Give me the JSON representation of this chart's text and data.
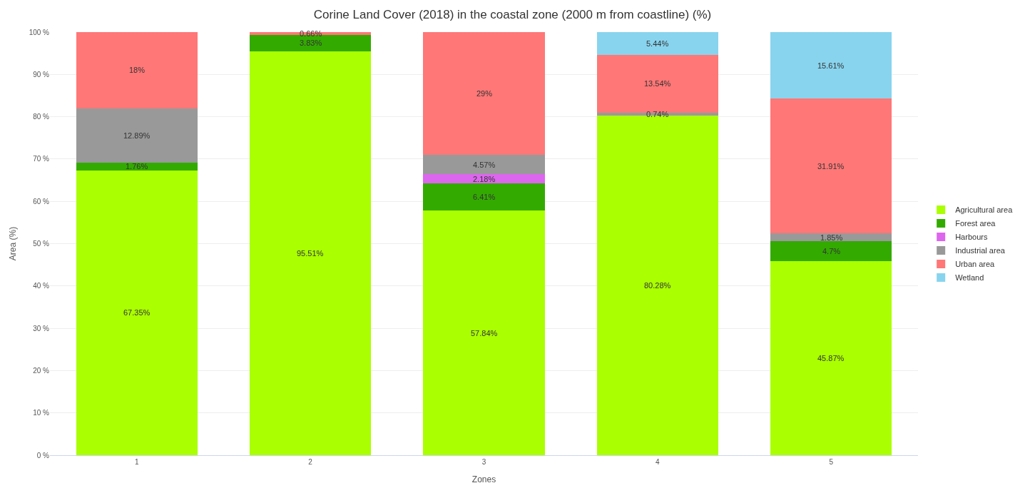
{
  "chart_data": {
    "type": "bar",
    "title": "Corine Land Cover (2018) in the coastal zone (2000 m from coastline) (%)",
    "xlabel": "Zones",
    "ylabel": "Area (%)",
    "categories": [
      "1",
      "2",
      "3",
      "4",
      "5"
    ],
    "stacked": true,
    "series": [
      {
        "name": "Agricultural area",
        "color": "#aaff00",
        "values": [
          67.35,
          95.51,
          57.84,
          80.28,
          45.87
        ],
        "value_labels": [
          "67.35%",
          "95.51%",
          "57.84%",
          "80.28%",
          "45.87%"
        ]
      },
      {
        "name": "Forest area",
        "color": "#33aa00",
        "values": [
          1.76,
          3.83,
          6.41,
          null,
          4.7
        ],
        "value_labels": [
          "1.76%",
          "3.83%",
          "6.41%",
          null,
          "4.7%"
        ]
      },
      {
        "name": "Harbours",
        "color": "#dd66ee",
        "values": [
          null,
          null,
          2.18,
          null,
          null
        ],
        "value_labels": [
          null,
          null,
          "2.18%",
          null,
          null
        ]
      },
      {
        "name": "Industrial area",
        "color": "#999999",
        "values": [
          12.89,
          null,
          4.57,
          0.74,
          1.85
        ],
        "value_labels": [
          "12.89%",
          null,
          "4.57%",
          "0.74%",
          "1.85%"
        ]
      },
      {
        "name": "Urban area",
        "color": "#ff7777",
        "values": [
          18,
          0.66,
          29,
          13.54,
          31.91
        ],
        "value_labels": [
          "18%",
          "0.66%",
          "29%",
          "13.54%",
          "31.91%"
        ]
      },
      {
        "name": "Wetland",
        "color": "#88d4ee",
        "values": [
          null,
          null,
          null,
          5.44,
          15.61
        ],
        "value_labels": [
          null,
          null,
          null,
          "5.44%",
          "15.61%"
        ]
      }
    ],
    "ylim": [
      0,
      100
    ],
    "yticks": [
      {
        "value": 0,
        "label": "0 %"
      },
      {
        "value": 10,
        "label": "10 %"
      },
      {
        "value": 20,
        "label": "20 %"
      },
      {
        "value": 30,
        "label": "30 %"
      },
      {
        "value": 40,
        "label": "40 %"
      },
      {
        "value": 50,
        "label": "50 %"
      },
      {
        "value": 60,
        "label": "60 %"
      },
      {
        "value": 70,
        "label": "70 %"
      },
      {
        "value": 80,
        "label": "80 %"
      },
      {
        "value": 90,
        "label": "90 %"
      },
      {
        "value": 100,
        "label": "100 %"
      }
    ],
    "grid": "y",
    "legend": "right"
  }
}
